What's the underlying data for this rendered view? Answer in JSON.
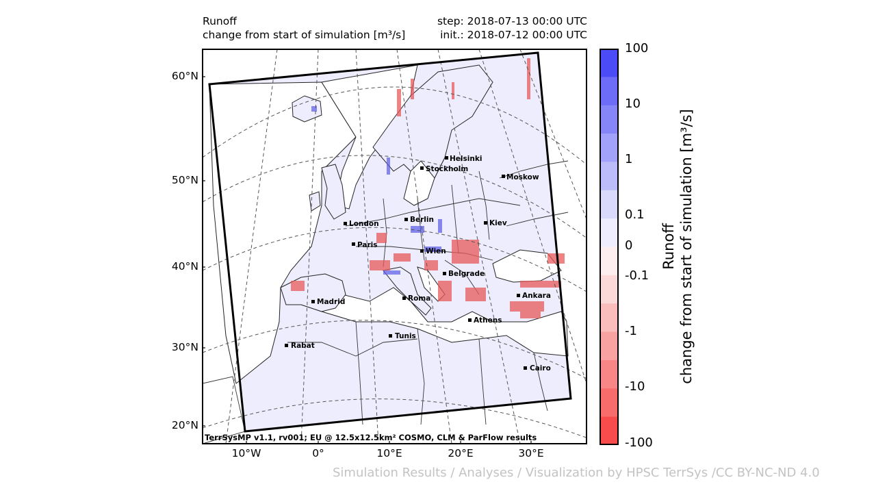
{
  "header": {
    "title": "Runoff",
    "subtitle": "change from start of simulation [m³/s]",
    "step": "step: 2018-07-13 00:00 UTC",
    "init": "init.: 2018-07-12 00:00 UTC"
  },
  "map": {
    "lat_labels": [
      "60°N",
      "50°N",
      "40°N",
      "30°N",
      "20°N"
    ],
    "lon_labels": [
      "10°W",
      "0°",
      "10°E",
      "20°E",
      "30°E"
    ],
    "cities": [
      "Helsinki",
      "Stockholm",
      "Moskow",
      "London",
      "Berlin",
      "Kiev",
      "Paris",
      "Wien",
      "Belgrade",
      "Madrid",
      "Roma",
      "Ankara",
      "Athens",
      "Tunis",
      "Rabat",
      "Cairo"
    ],
    "footer": "TerrSysMP v1.1, rv001; EU @ 12.5x12.5km² COSMO, CLM & ParFlow results"
  },
  "colorbar": {
    "ticks": [
      "100",
      "10",
      "1",
      "0.1",
      "0",
      "-0.1",
      "-1",
      "-10",
      "-100"
    ],
    "title_line1": "Runoff",
    "title_line2": "change from start of simulation [m³/s]",
    "colors": [
      "#4b4bf8",
      "#6c6cf9",
      "#8686f9",
      "#a2a2fb",
      "#bcbcfb",
      "#d9d9fc",
      "#ededfd",
      "#fceeee",
      "#fbd9d9",
      "#fbbcbc",
      "#f9a2a2",
      "#f98686",
      "#f96c6c",
      "#f84b4b"
    ]
  },
  "credit": "Simulation Results / Analyses / Visualization by HPSC TerrSys /CC BY-NC-ND 4.0"
}
